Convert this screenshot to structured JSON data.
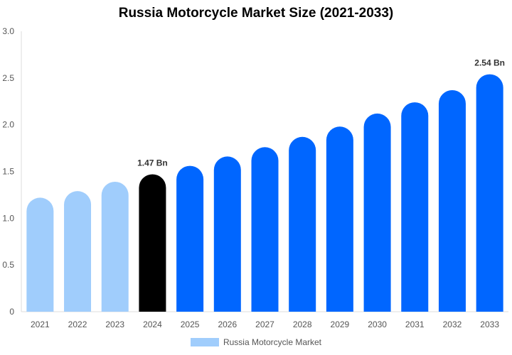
{
  "chart_data": {
    "type": "bar",
    "title": "Russia Motorcycle Market Size (2021-2033)",
    "categories": [
      "2021",
      "2022",
      "2023",
      "2024",
      "2025",
      "2026",
      "2027",
      "2028",
      "2029",
      "2030",
      "2031",
      "2032",
      "2033"
    ],
    "series": [
      {
        "name": "Russia Motorcycle Market",
        "values": [
          1.22,
          1.29,
          1.39,
          1.47,
          1.56,
          1.66,
          1.76,
          1.87,
          1.98,
          2.12,
          2.24,
          2.37,
          2.54
        ]
      }
    ],
    "data_labels": {
      "2024": "1.47 Bn",
      "2033": "2.54 Bn"
    },
    "ylim": [
      0,
      3.0
    ],
    "yticks": [
      "0",
      "0.5",
      "1.0",
      "1.5",
      "2.0",
      "2.5",
      "3.0"
    ],
    "grid": false,
    "legend_position": "bottom",
    "colors": {
      "historical": "#a0cdfc",
      "base_year": "#000000",
      "forecast": "#0066ff"
    }
  }
}
